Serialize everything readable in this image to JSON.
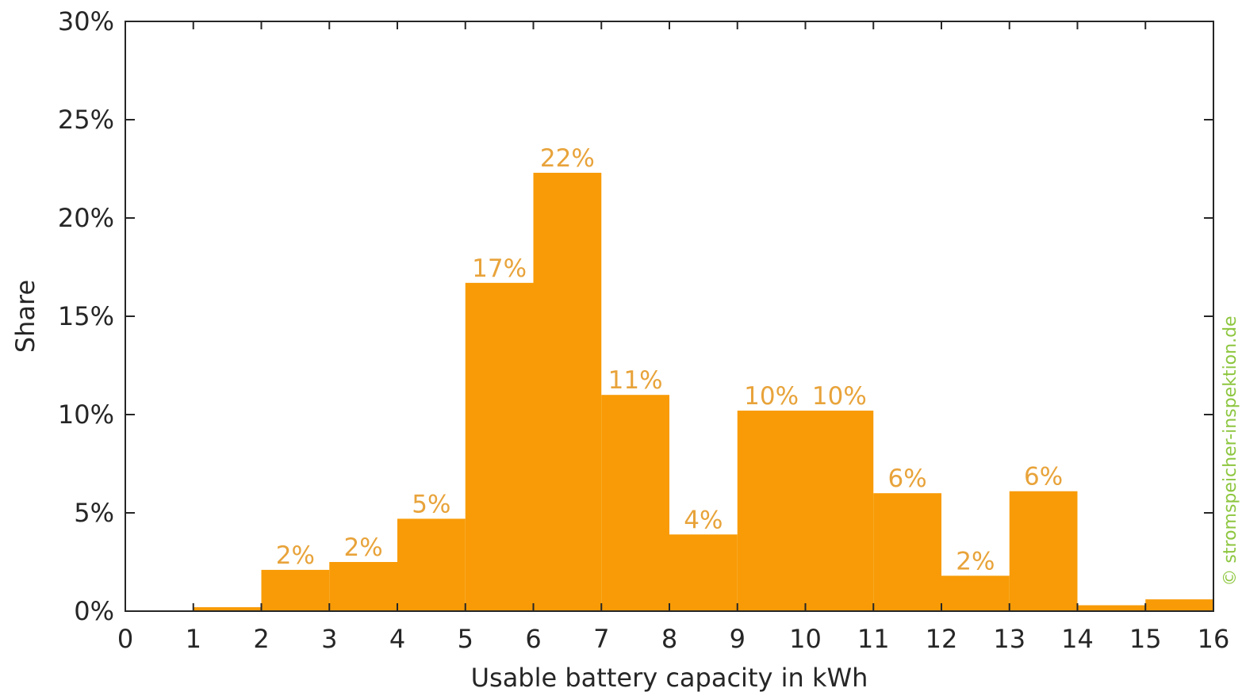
{
  "chart_data": {
    "type": "bar",
    "bin_edges": [
      0,
      1,
      2,
      3,
      4,
      5,
      6,
      7,
      8,
      9,
      10,
      11,
      12,
      13,
      14,
      15,
      16
    ],
    "values": [
      0,
      0.2,
      2.1,
      2.5,
      4.7,
      16.7,
      22.3,
      11.0,
      3.9,
      10.2,
      10.2,
      6.0,
      1.8,
      6.1,
      0.3,
      0.6
    ],
    "data_labels": [
      "",
      "",
      "2%",
      "2%",
      "5%",
      "17%",
      "22%",
      "11%",
      "4%",
      "10%",
      "10%",
      "6%",
      "2%",
      "6%",
      "",
      ""
    ],
    "xlabel": "Usable battery capacity in kWh",
    "ylabel": "Share",
    "xlim": [
      0,
      16
    ],
    "ylim": [
      0,
      30
    ],
    "x_ticks": [
      0,
      1,
      2,
      3,
      4,
      5,
      6,
      7,
      8,
      9,
      10,
      11,
      12,
      13,
      14,
      15,
      16
    ],
    "y_ticks": [
      0,
      5,
      10,
      15,
      20,
      25,
      30
    ],
    "y_tick_labels": [
      "0%",
      "5%",
      "10%",
      "15%",
      "20%",
      "25%",
      "30%"
    ],
    "grid": false,
    "bar_color": "#f89b06",
    "label_color": "#e8a33a"
  },
  "watermark": "© stromspeicher-inspektion.de"
}
